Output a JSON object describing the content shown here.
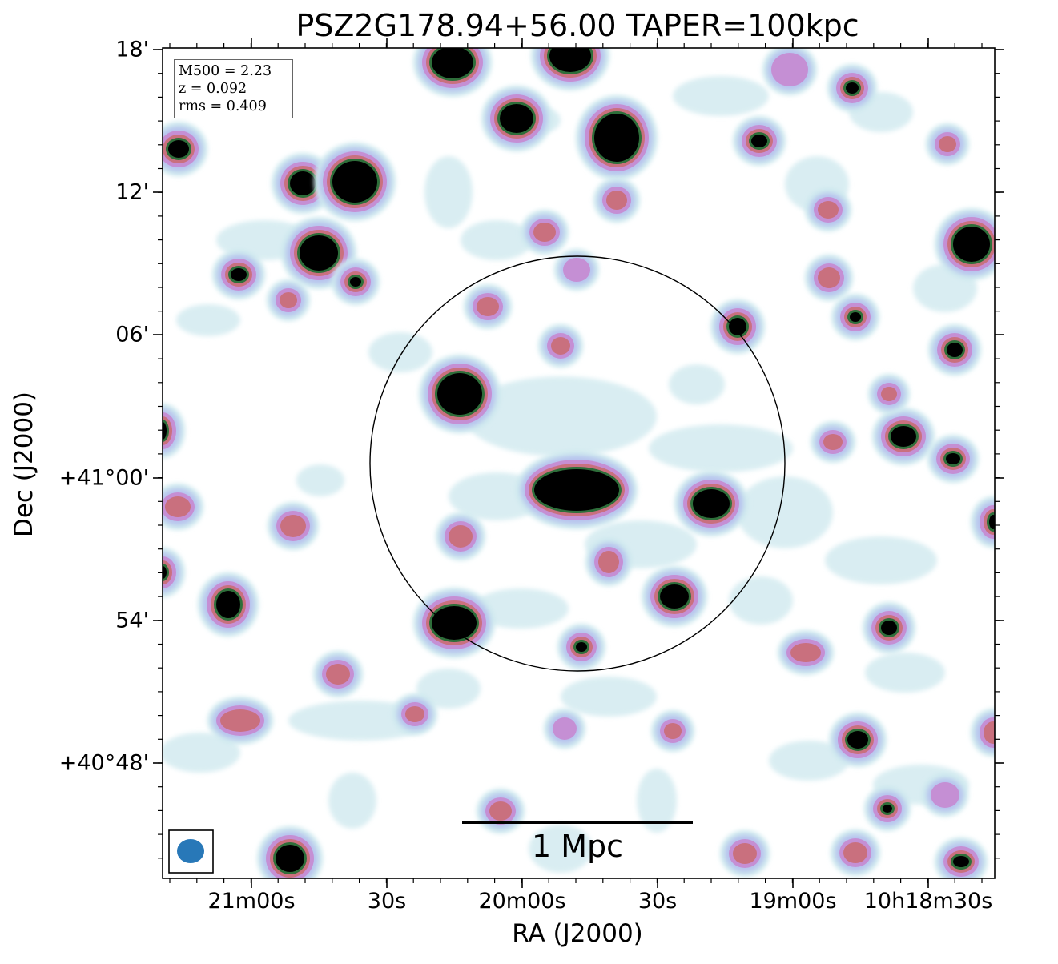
{
  "figure": {
    "title": "PSZ2G178.94+56.00 TAPER=100kpc",
    "xlabel": "RA (J2000)",
    "ylabel": "Dec (J2000)",
    "x_ticks": [
      "21m00s",
      "30s",
      "20m00s",
      "30s",
      "19m00s",
      "10h18m30s"
    ],
    "y_ticks": [
      "18'",
      "12'",
      "06'",
      "+41°00'",
      "54'",
      "+40°48'"
    ],
    "info": {
      "m500": "M500 = 2.23",
      "z": "z = 0.092",
      "rms": "rms = 0.409"
    },
    "scalebar_label": "1 Mpc",
    "colors": {
      "faint": "#cde8ee",
      "low": "#b8c4ee",
      "mid": "#c58fd4",
      "high": "#c9707e",
      "peak": "#2e6e3a",
      "core": "#000000",
      "beam": "#2878b8",
      "circle": "#000000"
    }
  }
}
